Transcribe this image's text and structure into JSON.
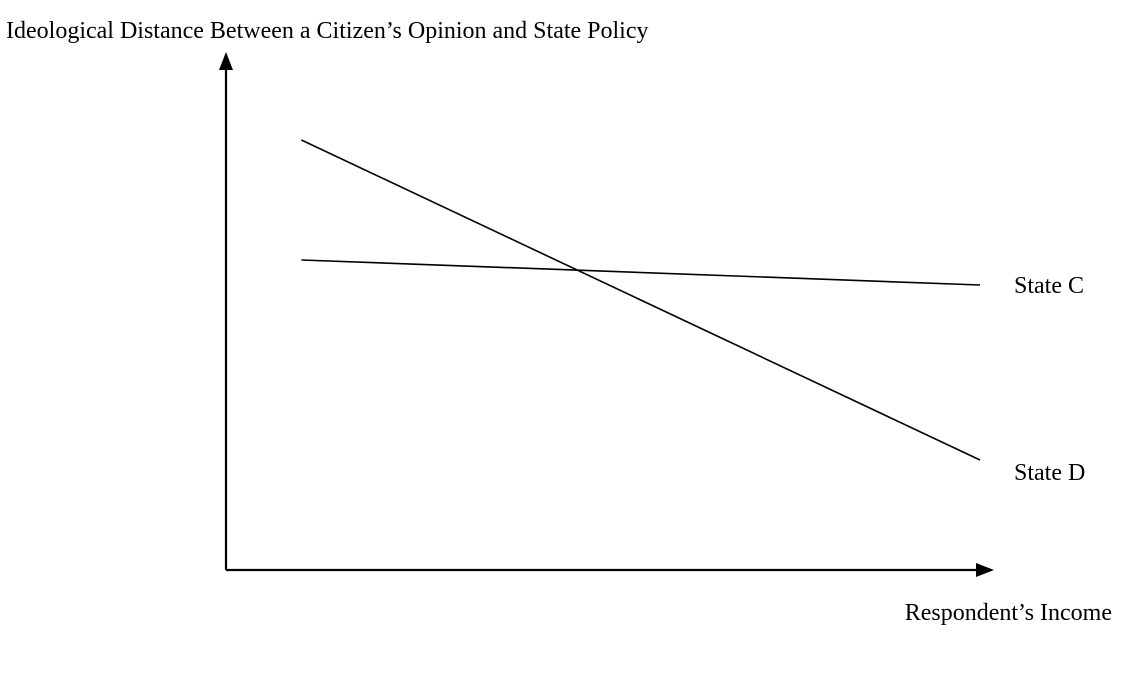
{
  "chart_data": {
    "type": "line",
    "ylabel": "Ideological Distance Between a Citizen’s Opinion and State Policy",
    "xlabel": "Respondent’s Income",
    "xlim": [
      0,
      10
    ],
    "ylim": [
      0,
      10
    ],
    "grid": false,
    "legend": "direct labels at right end of lines",
    "series": [
      {
        "name": "State C",
        "points": [
          [
            1.0,
            6.2
          ],
          [
            10.0,
            5.7
          ]
        ]
      },
      {
        "name": "State D",
        "points": [
          [
            1.0,
            8.6
          ],
          [
            10.0,
            2.2
          ]
        ]
      }
    ]
  },
  "colors": {
    "ink": "#000000",
    "background": "#ffffff"
  }
}
